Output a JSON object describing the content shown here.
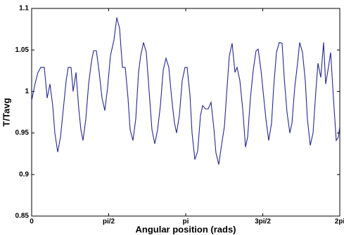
{
  "chart_data": {
    "type": "line",
    "xlabel": "Angular position (rads)",
    "ylabel": "T/Tavg",
    "x": [
      0,
      0.072,
      0.129,
      0.186,
      0.258,
      0.316,
      0.373,
      0.43,
      0.473,
      0.531,
      0.588,
      0.646,
      0.703,
      0.746,
      0.803,
      0.846,
      0.904,
      0.961,
      1.004,
      1.047,
      1.105,
      1.162,
      1.219,
      1.262,
      1.32,
      1.377,
      1.435,
      1.492,
      1.549,
      1.607,
      1.678,
      1.736,
      1.793,
      1.851,
      1.908,
      1.965,
      2.008,
      2.066,
      2.123,
      2.18,
      2.223,
      2.281,
      2.338,
      2.396,
      2.453,
      2.51,
      2.568,
      2.625,
      2.683,
      2.74,
      2.797,
      2.855,
      2.912,
      2.955,
      3.012,
      3.07,
      3.127,
      3.17,
      3.228,
      3.271,
      3.328,
      3.385,
      3.443,
      3.486,
      3.543,
      3.601,
      3.658,
      3.715,
      3.758,
      3.816,
      3.873,
      3.931,
      3.974,
      4.031,
      4.088,
      4.146,
      4.189,
      4.246,
      4.304,
      4.361,
      4.404,
      4.461,
      4.519,
      4.576,
      4.619,
      4.676,
      4.734,
      4.777,
      4.834,
      4.892,
      4.935,
      4.992,
      5.049,
      5.107,
      5.15,
      5.207,
      5.265,
      5.308,
      5.365,
      5.422,
      5.465,
      5.523,
      5.58,
      5.623,
      5.681,
      5.738,
      5.795,
      5.838,
      5.896,
      5.953,
      5.996,
      6.054,
      6.097,
      6.154,
      6.211,
      6.254,
      6.283
    ],
    "series": [
      {
        "name": "T/Tavg",
        "color": "#27278f",
        "values": [
          0.989,
          1.01,
          1.023,
          1.029,
          1.029,
          0.992,
          1.009,
          0.983,
          0.95,
          0.927,
          0.945,
          0.979,
          1.013,
          1.029,
          1.029,
          1.0,
          1.023,
          0.979,
          0.954,
          0.941,
          0.967,
          1.009,
          1.036,
          1.049,
          1.049,
          1.023,
          0.992,
          0.977,
          1.005,
          1.043,
          1.062,
          1.089,
          1.076,
          1.029,
          1.029,
          0.992,
          0.954,
          0.941,
          0.967,
          1.023,
          1.043,
          1.059,
          1.047,
          1.0,
          0.954,
          0.937,
          0.954,
          0.983,
          1.026,
          1.04,
          1.029,
          0.992,
          0.962,
          0.95,
          0.971,
          1.013,
          1.029,
          1.029,
          0.996,
          0.95,
          0.918,
          0.928,
          0.971,
          0.983,
          0.979,
          0.979,
          0.987,
          0.956,
          0.926,
          0.912,
          0.936,
          0.958,
          0.996,
          1.043,
          1.058,
          1.023,
          1.029,
          1.013,
          0.979,
          0.933,
          0.945,
          0.992,
          1.026,
          1.049,
          1.051,
          1.026,
          0.992,
          0.967,
          0.941,
          0.962,
          1.005,
          1.047,
          1.059,
          1.058,
          1.017,
          0.975,
          0.95,
          0.962,
          1.005,
          1.034,
          1.059,
          1.047,
          1.013,
          0.967,
          0.935,
          0.95,
          1.0,
          1.034,
          1.017,
          1.059,
          1.009,
          1.03,
          1.047,
          0.992,
          0.941,
          0.945,
          0.958
        ]
      }
    ],
    "xlim": [
      0,
      6.2832
    ],
    "xticks": [
      {
        "value": 0,
        "label": "0"
      },
      {
        "value": 1.5708,
        "label": "pi/2"
      },
      {
        "value": 3.1416,
        "label": "pi"
      },
      {
        "value": 4.7124,
        "label": "3pi/2"
      },
      {
        "value": 6.2832,
        "label": "2pi"
      }
    ],
    "ylim": [
      0.85,
      1.1
    ],
    "yticks": [
      0.85,
      0.9,
      0.95,
      1,
      1.05,
      1.1
    ],
    "grid": false
  }
}
